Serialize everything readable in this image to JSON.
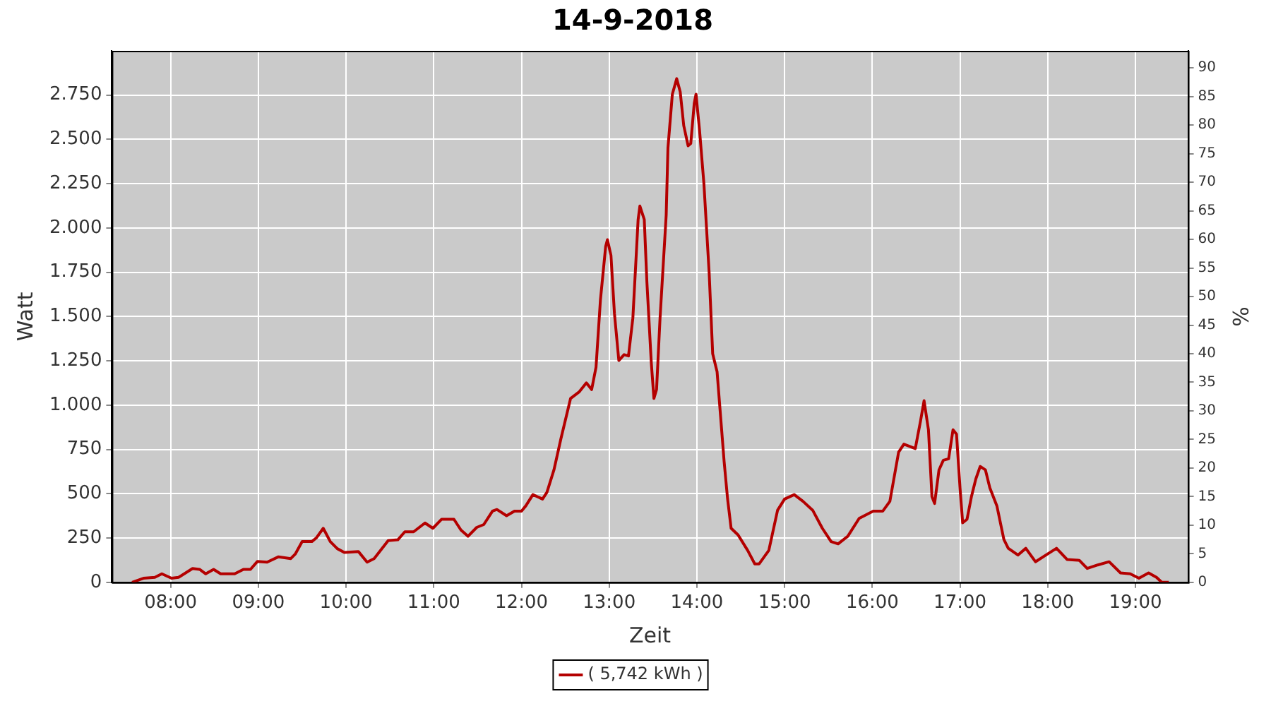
{
  "chart_data": {
    "type": "line",
    "title": "14-9-2018",
    "xlabel": "Zeit",
    "ylabel": "Watt",
    "y2label": "%",
    "xlim": [
      7.33,
      19.6
    ],
    "ylim": [
      0,
      3000
    ],
    "y2lim": [
      0,
      93
    ],
    "xticks": [
      {
        "value": 8,
        "label": "08:00"
      },
      {
        "value": 9,
        "label": "09:00"
      },
      {
        "value": 10,
        "label": "10:00"
      },
      {
        "value": 11,
        "label": "11:00"
      },
      {
        "value": 12,
        "label": "12:00"
      },
      {
        "value": 13,
        "label": "13:00"
      },
      {
        "value": 14,
        "label": "14:00"
      },
      {
        "value": 15,
        "label": "15:00"
      },
      {
        "value": 16,
        "label": "16:00"
      },
      {
        "value": 17,
        "label": "17:00"
      },
      {
        "value": 18,
        "label": "18:00"
      },
      {
        "value": 19,
        "label": "19:00"
      }
    ],
    "yticks": [
      0,
      250,
      500,
      750,
      {
        "value": 1000,
        "label": "1.000"
      },
      {
        "value": 1250,
        "label": "1.250"
      },
      {
        "value": 1500,
        "label": "1.500"
      },
      {
        "value": 1750,
        "label": "1.750"
      },
      {
        "value": 2000,
        "label": "2.000"
      },
      {
        "value": 2250,
        "label": "2.250"
      },
      {
        "value": 2500,
        "label": "2.500"
      },
      {
        "value": 2750,
        "label": "2.750"
      }
    ],
    "y2ticks": [
      0,
      5,
      10,
      15,
      20,
      25,
      30,
      35,
      40,
      45,
      50,
      55,
      60,
      65,
      70,
      75,
      80,
      85,
      90
    ],
    "grid": true,
    "legend": "bottom",
    "marker": "none",
    "line_style": "solid",
    "series": [
      {
        "name": "( 5,742 kWh )",
        "color": "#b40000",
        "x": [
          7.56,
          7.69,
          7.82,
          7.9,
          8.01,
          8.09,
          8.25,
          8.33,
          8.4,
          8.49,
          8.57,
          8.73,
          8.83,
          8.91,
          8.99,
          9.1,
          9.23,
          9.37,
          9.42,
          9.5,
          9.61,
          9.66,
          9.74,
          9.82,
          9.9,
          9.98,
          10.14,
          10.24,
          10.32,
          10.48,
          10.59,
          10.67,
          10.77,
          10.9,
          10.99,
          11.09,
          11.23,
          11.31,
          11.39,
          11.49,
          11.57,
          11.67,
          11.72,
          11.83,
          11.92,
          12.0,
          12.05,
          12.13,
          12.24,
          12.29,
          12.37,
          12.45,
          12.56,
          12.66,
          12.74,
          12.8,
          12.85,
          12.9,
          12.96,
          12.98,
          13.02,
          13.06,
          13.11,
          13.17,
          13.22,
          13.27,
          13.33,
          13.35,
          13.4,
          13.43,
          13.48,
          13.51,
          13.54,
          13.58,
          13.65,
          13.67,
          13.72,
          13.77,
          13.81,
          13.85,
          13.9,
          13.93,
          13.97,
          13.99,
          14.03,
          14.08,
          14.14,
          14.18,
          14.23,
          14.27,
          14.31,
          14.35,
          14.39,
          14.47,
          14.58,
          14.66,
          14.71,
          14.82,
          14.92,
          15.0,
          15.11,
          15.21,
          15.32,
          15.43,
          15.53,
          15.61,
          15.72,
          15.85,
          16.01,
          16.12,
          16.2,
          16.3,
          16.36,
          16.49,
          16.55,
          16.59,
          16.64,
          16.68,
          16.71,
          16.76,
          16.81,
          16.87,
          16.92,
          16.96,
          17.0,
          17.03,
          17.08,
          17.13,
          17.18,
          17.23,
          17.29,
          17.34,
          17.42,
          17.5,
          17.55,
          17.66,
          17.75,
          17.86,
          17.98,
          18.1,
          18.22,
          18.36,
          18.45,
          18.57,
          18.7,
          18.83,
          18.94,
          19.04,
          19.15,
          19.24,
          19.3,
          19.38
        ],
        "values": [
          0,
          23,
          28,
          48,
          23,
          28,
          78,
          73,
          48,
          73,
          48,
          48,
          73,
          73,
          118,
          114,
          144,
          134,
          159,
          230,
          230,
          250,
          305,
          230,
          190,
          169,
          174,
          114,
          134,
          235,
          240,
          285,
          285,
          335,
          305,
          356,
          356,
          295,
          260,
          310,
          326,
          402,
          411,
          376,
          402,
          402,
          432,
          495,
          470,
          508,
          634,
          811,
          1038,
          1076,
          1126,
          1088,
          1214,
          1593,
          1896,
          1934,
          1846,
          1517,
          1252,
          1285,
          1278,
          1492,
          2048,
          2124,
          2048,
          1695,
          1240,
          1038,
          1088,
          1492,
          2073,
          2452,
          2755,
          2843,
          2768,
          2578,
          2464,
          2477,
          2705,
          2755,
          2553,
          2250,
          1745,
          1290,
          1189,
          937,
          684,
          470,
          305,
          267,
          179,
          104,
          104,
          180,
          407,
          470,
          495,
          457,
          407,
          305,
          230,
          217,
          260,
          361,
          402,
          402,
          457,
          735,
          780,
          755,
          911,
          1025,
          861,
          483,
          445,
          634,
          689,
          697,
          861,
          836,
          533,
          336,
          356,
          483,
          583,
          654,
          634,
          533,
          432,
          242,
          192,
          154,
          192,
          116,
          154,
          192,
          129,
          124,
          78,
          98,
          116,
          53,
          48,
          23,
          53,
          28,
          0,
          0
        ]
      }
    ]
  }
}
